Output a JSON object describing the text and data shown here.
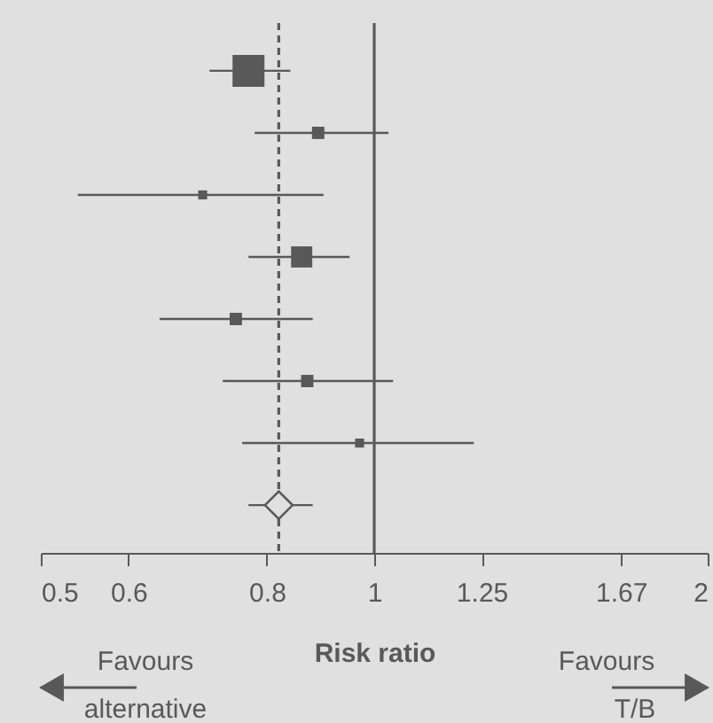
{
  "chart_data": {
    "type": "bubble",
    "orientation": "horizontal",
    "xlabel": "Risk ratio",
    "categories": [
      null,
      null,
      null,
      null,
      null,
      null,
      null,
      null
    ],
    "series": [
      {
        "type": "bubble",
        "marker": "square",
        "color": "#595959",
        "values": [
          0.77,
          0.89,
          0.7,
          0.86,
          0.75,
          0.87,
          0.97,
          null
        ],
        "errors": [
          [
            0.71,
            0.84
          ],
          [
            0.78,
            1.03
          ],
          [
            0.54,
            0.9
          ],
          [
            0.77,
            0.95
          ],
          [
            0.64,
            0.88
          ],
          [
            0.73,
            1.04
          ],
          [
            0.76,
            1.23
          ],
          null
        ],
        "sizes": [
          1,
          0.15,
          0.08,
          0.44,
          0.15,
          0.15,
          0.08,
          null
        ]
      },
      {
        "type": "scatter",
        "marker": "diamond",
        "color": "#595959",
        "values": [
          null,
          null,
          null,
          null,
          null,
          null,
          null,
          0.82
        ],
        "errors": [
          null,
          null,
          null,
          null,
          null,
          null,
          null,
          [
            0.77,
            0.88
          ]
        ]
      }
    ],
    "xlim": [
      0.5,
      2
    ],
    "xticks": [
      0.5,
      0.6,
      0.8,
      1,
      1.25,
      1.67,
      2
    ],
    "log": "x",
    "tick_labels": "x",
    "ref_lines": [
      {
        "axis": "x",
        "value": 0.82,
        "line_style": "dashed",
        "color": "#595959"
      },
      {
        "axis": "x",
        "value": 1,
        "line_style": "solid",
        "color": "#595959"
      }
    ],
    "annotations": [
      "Favours alternative",
      "Favours T/B"
    ]
  }
}
